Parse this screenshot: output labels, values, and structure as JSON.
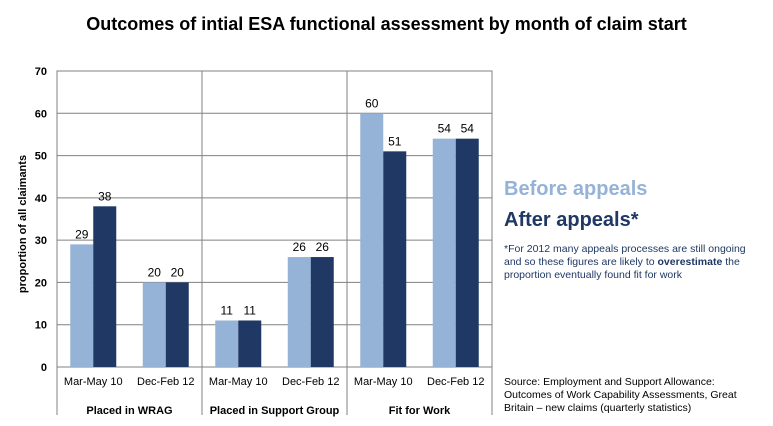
{
  "chart_data": {
    "type": "bar",
    "title": "Outcomes of intial ESA functional assessment by month of claim start",
    "ylabel": "proportion of all claimants",
    "ylim": [
      0,
      70
    ],
    "yticks": [
      0,
      10,
      20,
      30,
      40,
      50,
      60,
      70
    ],
    "grid": true,
    "groups": [
      {
        "label": "Placed in WRAG",
        "categories": [
          "Mar-May 10",
          "Dec-Feb 12"
        ]
      },
      {
        "label": "Placed in Support Group",
        "categories": [
          "Mar-May 10",
          "Dec-Feb 12"
        ]
      },
      {
        "label": "Fit for Work",
        "categories": [
          "Mar-May 10",
          "Dec-Feb 12"
        ]
      }
    ],
    "categories": [
      "Mar-May 10",
      "Dec-Feb 12",
      "Mar-May 10",
      "Dec-Feb 12",
      "Mar-May 10",
      "Dec-Feb 12"
    ],
    "series": [
      {
        "name": "Before appeals",
        "color": "#95B3D7",
        "values": [
          29,
          20,
          11,
          26,
          60,
          54
        ]
      },
      {
        "name": "After appeals*",
        "color": "#1F3864",
        "values": [
          38,
          20,
          11,
          26,
          51,
          54
        ]
      }
    ]
  },
  "legend": {
    "before": "Before appeals",
    "after": "After appeals*"
  },
  "footnote": {
    "part1": "*For 2012 many appeals processes are still ongoing and so these figures are likely to ",
    "emphasis": "overestimate",
    "part2": " the proportion eventually found fit for work"
  },
  "source": "Source: Employment and Support Allowance: Outcomes of Work Capability Assessments, Great Britain – new claims (quarterly statistics)"
}
